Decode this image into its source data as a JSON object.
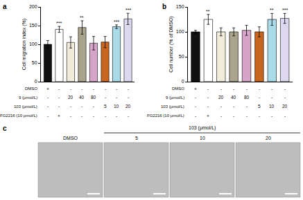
{
  "chart_data": [
    {
      "type": "bar",
      "panel": "a",
      "y_label": "Cell migration index (%)",
      "categories": [
        null,
        null,
        null,
        null,
        null,
        null,
        null,
        null
      ],
      "values": [
        100,
        140,
        105,
        145,
        103,
        106,
        147,
        168
      ],
      "errors": [
        10,
        8,
        15,
        18,
        18,
        15,
        5,
        15
      ],
      "significance": [
        null,
        "***",
        null,
        "**",
        null,
        null,
        "***",
        "***"
      ],
      "colors": [
        "#111111",
        "#ffffff",
        "#f1ecd9",
        "#a9a48b",
        "#d6a3c9",
        "#c8651f",
        "#a9dbe8",
        "#ddd7ef"
      ],
      "ylim": [
        0,
        200
      ],
      "yticks": [
        0,
        50,
        100,
        150,
        200
      ],
      "grid": false,
      "treatments": [
        {
          "label": "DMSO",
          "cells": [
            "+",
            "-",
            "-",
            "-",
            "-",
            "-",
            "-",
            "-"
          ]
        },
        {
          "label": "9 (μmol/L)",
          "cells": [
            "-",
            "-",
            "20",
            "40",
            "80",
            "-",
            "-",
            "-"
          ]
        },
        {
          "label": "103 (μmol/L)",
          "cells": [
            "-",
            "-",
            "-",
            "-",
            "-",
            "5",
            "10",
            "20"
          ]
        },
        {
          "label": "FG2216 (10 μmol/L)",
          "cells": [
            "-",
            "+",
            "-",
            "-",
            "-",
            "-",
            "-",
            "-"
          ]
        }
      ]
    },
    {
      "type": "bar",
      "panel": "b",
      "y_label": "Cell number (% of DMSO)",
      "categories": [
        null,
        null,
        null,
        null,
        null,
        null,
        null,
        null
      ],
      "values": [
        100,
        125,
        100,
        100,
        103,
        100,
        125,
        127
      ],
      "errors": [
        3,
        10,
        8,
        8,
        10,
        10,
        12,
        10
      ],
      "significance": [
        null,
        "**",
        null,
        null,
        null,
        null,
        "**",
        "***"
      ],
      "colors": [
        "#111111",
        "#ffffff",
        "#f1ecd9",
        "#a9a48b",
        "#d6a3c9",
        "#c8651f",
        "#a9dbe8",
        "#ddd7ef"
      ],
      "ylim": [
        0,
        150
      ],
      "yticks": [
        0,
        50,
        100,
        150
      ],
      "grid": false,
      "treatments": [
        {
          "label": "DMSO",
          "cells": [
            "+",
            "-",
            "-",
            "-",
            "-",
            "-",
            "-",
            "-"
          ]
        },
        {
          "label": "9 (μmol/L)",
          "cells": [
            "-",
            "-",
            "20",
            "40",
            "80",
            "-",
            "-",
            "-"
          ]
        },
        {
          "label": "103 (μmol/L)",
          "cells": [
            "-",
            "-",
            "-",
            "-",
            "-",
            "5",
            "10",
            "20"
          ]
        },
        {
          "label": "FG2216 (10 μmol/L)",
          "cells": [
            "-",
            "+",
            "-",
            "-",
            "-",
            "-",
            "-",
            "-"
          ]
        }
      ]
    }
  ],
  "panel_c": {
    "panel": "c",
    "group_label": "103 (μmol/L)",
    "labels": [
      "DMSO",
      "5",
      "10",
      "20"
    ]
  }
}
